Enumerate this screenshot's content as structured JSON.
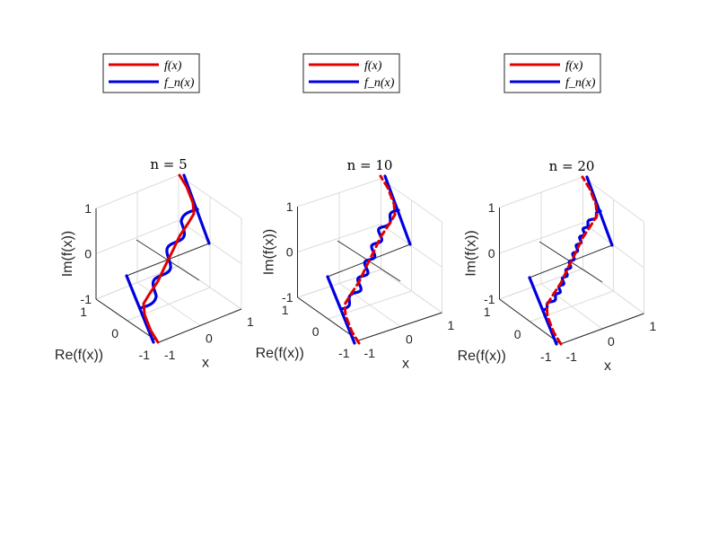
{
  "chart_data": [
    {
      "type": "line3d",
      "title": "n = 5",
      "n": 5,
      "xlabel": "x",
      "ylabel": "Re(f(x))",
      "zlabel": "Im(f(x))",
      "xlim": [
        -1,
        1
      ],
      "ylim": [
        -1,
        1
      ],
      "zlim": [
        -1,
        1
      ],
      "xticks": [
        "-1",
        "0",
        "1"
      ],
      "yticks": [
        "-1",
        "0",
        "1"
      ],
      "zticks": [
        "-1",
        "0",
        "1"
      ],
      "grid": true,
      "legend": {
        "placement": "top",
        "entries": [
          {
            "label": "f(x)",
            "color": "#e00000"
          },
          {
            "label": "f_n(x)",
            "sub": "n",
            "color": "#0000e0"
          }
        ]
      }
    },
    {
      "type": "line3d",
      "title": "n = 10",
      "n": 10,
      "xlabel": "x",
      "ylabel": "Re(f(x))",
      "zlabel": "Im(f(x))",
      "xlim": [
        -1,
        1
      ],
      "ylim": [
        -1,
        1
      ],
      "zlim": [
        -1,
        1
      ],
      "xticks": [
        "-1",
        "0",
        "1"
      ],
      "yticks": [
        "-1",
        "0",
        "1"
      ],
      "zticks": [
        "-1",
        "0",
        "1"
      ],
      "grid": true,
      "legend": {
        "placement": "top",
        "entries": [
          {
            "label": "f(x)",
            "color": "#e00000"
          },
          {
            "label": "f_n(x)",
            "sub": "n",
            "color": "#0000e0"
          }
        ]
      }
    },
    {
      "type": "line3d",
      "title": "n = 20",
      "n": 20,
      "xlabel": "x",
      "ylabel": "Re(f(x))",
      "zlabel": "Im(f(x))",
      "xlim": [
        -1,
        1
      ],
      "ylim": [
        -1,
        1
      ],
      "zlim": [
        -1,
        1
      ],
      "xticks": [
        "-1",
        "0",
        "1"
      ],
      "yticks": [
        "-1",
        "0",
        "1"
      ],
      "zticks": [
        "-1",
        "0",
        "1"
      ],
      "grid": true,
      "legend": {
        "placement": "top",
        "entries": [
          {
            "label": "f(x)",
            "color": "#e00000"
          },
          {
            "label": "f_n(x)",
            "sub": "n",
            "color": "#0000e0"
          }
        ]
      }
    }
  ]
}
